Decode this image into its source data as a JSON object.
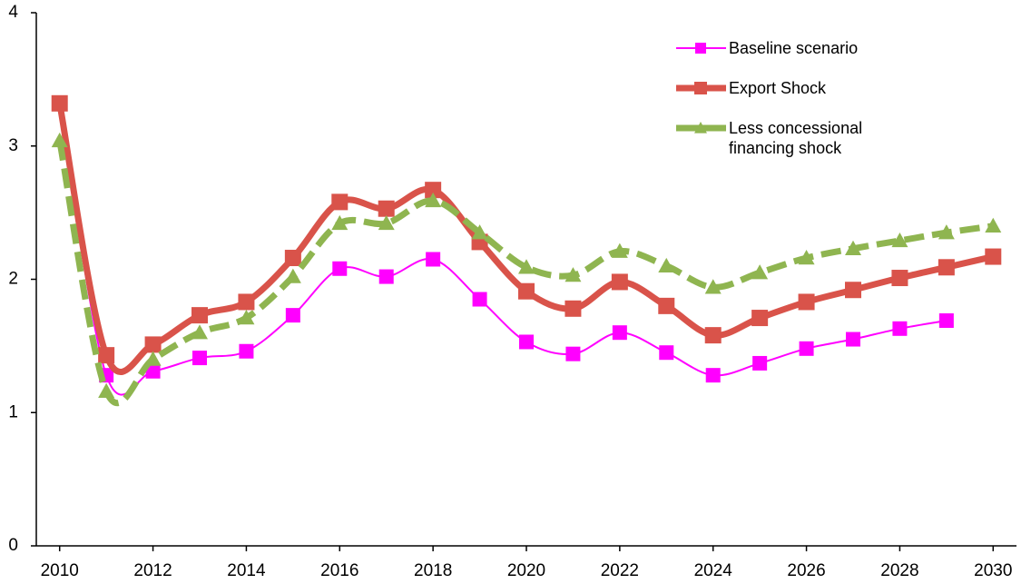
{
  "chart_data": {
    "type": "line",
    "x": [
      2010,
      2011,
      2012,
      2013,
      2014,
      2015,
      2016,
      2017,
      2018,
      2019,
      2020,
      2021,
      2022,
      2023,
      2024,
      2025,
      2026,
      2027,
      2028,
      2029,
      2030
    ],
    "xlim": [
      2009.5,
      2030.5
    ],
    "xticks": [
      2010,
      2012,
      2014,
      2016,
      2018,
      2020,
      2022,
      2024,
      2026,
      2028,
      2030
    ],
    "ylim": [
      0,
      4
    ],
    "yticks": [
      0,
      1,
      2,
      3,
      4
    ],
    "legend": "upper right",
    "series": [
      {
        "name": "Baseline scenario",
        "color": "#ff00ff",
        "marker": "square",
        "dash": false,
        "values": [
          3.32,
          1.28,
          1.31,
          1.41,
          1.46,
          1.73,
          2.08,
          2.02,
          2.15,
          1.85,
          1.53,
          1.44,
          1.6,
          1.45,
          1.28,
          1.37,
          1.48,
          1.55,
          1.63,
          1.69,
          null
        ]
      },
      {
        "name": "Export Shock",
        "color": "#d9534a",
        "marker": "square",
        "dash": false,
        "values": [
          3.32,
          1.43,
          1.51,
          1.73,
          1.83,
          2.16,
          2.58,
          2.53,
          2.67,
          2.28,
          1.91,
          1.78,
          1.98,
          1.8,
          1.58,
          1.71,
          1.83,
          1.92,
          2.01,
          2.09,
          2.17
        ]
      },
      {
        "name": "Less concessional financing shock",
        "color": "#8fb550",
        "marker": "triangle",
        "dash": true,
        "values": [
          3.04,
          1.16,
          1.4,
          1.6,
          1.71,
          2.02,
          2.42,
          2.42,
          2.59,
          2.35,
          2.09,
          2.03,
          2.21,
          2.1,
          1.94,
          2.05,
          2.16,
          2.23,
          2.29,
          2.35,
          2.4
        ]
      }
    ]
  }
}
